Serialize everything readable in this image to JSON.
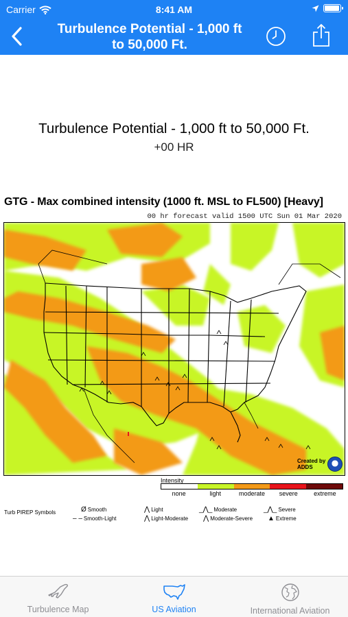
{
  "status_bar": {
    "carrier": "Carrier",
    "time": "8:41 AM",
    "battery_level": 0.95
  },
  "nav": {
    "title_line1": "Turbulence Potential - 1,000 ft",
    "title_line2": "to 50,000 Ft.",
    "back_icon": "chevron-left-icon",
    "history_icon": "clock-icon",
    "share_icon": "share-icon"
  },
  "product": {
    "title": "Turbulence Potential - 1,000 ft to 50,000 Ft.",
    "forecast_hour": "+00 HR"
  },
  "map": {
    "title": "GTG - Max combined intensity (1000 ft. MSL to FL500) [Heavy]",
    "valid": "00 hr forecast valid 1500 UTC Sun 01 Mar 2020",
    "credit_line1": "Created by",
    "credit_line2": "ADDS"
  },
  "legend": {
    "label": "Intensity",
    "levels": [
      {
        "name": "none",
        "color": "#ffffff"
      },
      {
        "name": "light",
        "color": "#c8f528"
      },
      {
        "name": "moderate",
        "color": "#f39a18"
      },
      {
        "name": "severe",
        "color": "#e8141c"
      },
      {
        "name": "extreme",
        "color": "#6e0a0a"
      }
    ]
  },
  "pirep": {
    "title": "Turb PIREP Symbols",
    "items": [
      {
        "label": "Smooth",
        "symbol": "Ø"
      },
      {
        "label": "Smooth-Light",
        "symbol": "‒ ‒"
      },
      {
        "label": "Light",
        "symbol": "⋀"
      },
      {
        "label": "Light-Moderate",
        "symbol": "⋀"
      },
      {
        "label": "Moderate",
        "symbol": "_⋀_"
      },
      {
        "label": "Moderate-Severe",
        "symbol": "⋀"
      },
      {
        "label": "Severe",
        "symbol": "_⋀_"
      },
      {
        "label": "Extreme",
        "symbol": "▲"
      }
    ]
  },
  "tabs": [
    {
      "label": "Turbulence Map",
      "icon": "airplane-icon",
      "active": false
    },
    {
      "label": "US Aviation",
      "icon": "us-map-icon",
      "active": true
    },
    {
      "label": "International Aviation",
      "icon": "globe-icon",
      "active": false
    }
  ]
}
